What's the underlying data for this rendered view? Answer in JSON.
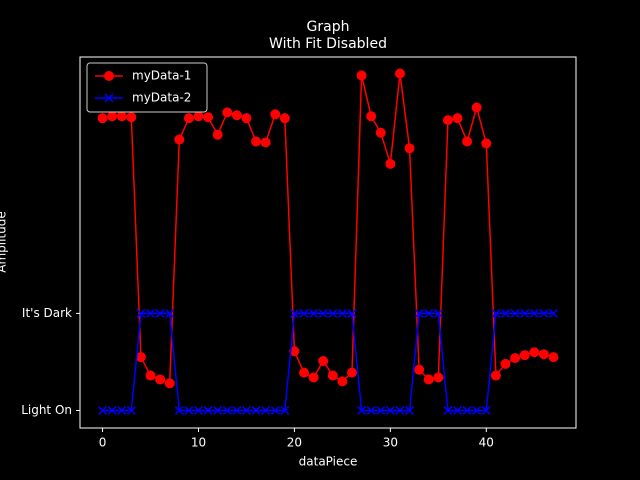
{
  "chart_data": {
    "type": "line",
    "title": "Graph",
    "subtitle": "With Fit Disabled",
    "x_label": "dataPiece",
    "y_label": "Amplitude",
    "x": [
      0,
      1,
      2,
      3,
      4,
      5,
      6,
      7,
      8,
      9,
      10,
      11,
      12,
      13,
      14,
      15,
      16,
      17,
      18,
      19,
      20,
      21,
      22,
      23,
      24,
      25,
      26,
      27,
      28,
      29,
      30,
      31,
      32,
      33,
      34,
      35,
      36,
      37,
      38,
      39,
      40,
      41,
      42,
      43,
      44,
      45,
      46,
      47
    ],
    "series": [
      {
        "name": "myData-1",
        "color": "#ff0000",
        "marker": "circle",
        "values": [
          3.01,
          3.03,
          3.03,
          3.02,
          0.55,
          0.36,
          0.32,
          0.28,
          2.79,
          3.01,
          3.03,
          3.02,
          2.84,
          3.07,
          3.04,
          3.01,
          2.77,
          2.76,
          3.05,
          3.01,
          0.61,
          0.39,
          0.34,
          0.51,
          0.36,
          0.3,
          0.39,
          3.45,
          3.03,
          2.86,
          2.54,
          3.47,
          2.7,
          0.42,
          0.32,
          0.34,
          2.99,
          3.01,
          2.77,
          3.12,
          2.75,
          0.36,
          0.48,
          0.54,
          0.57,
          0.6,
          0.58,
          0.55
        ]
      },
      {
        "name": "myData-2",
        "color": "#0000ff",
        "marker": "x",
        "values": [
          0,
          0,
          0,
          0,
          1,
          1,
          1,
          1,
          0,
          0,
          0,
          0,
          0,
          0,
          0,
          0,
          0,
          0,
          0,
          0,
          1,
          1,
          1,
          1,
          1,
          1,
          1,
          0,
          0,
          0,
          0,
          0,
          0,
          1,
          1,
          1,
          0,
          0,
          0,
          0,
          0,
          1,
          1,
          1,
          1,
          1,
          1,
          1
        ]
      }
    ],
    "xlim": [
      -2.35,
      49.35
    ],
    "ylim": [
      -0.18,
      3.64
    ],
    "xticks": [
      0,
      10,
      20,
      30,
      40
    ],
    "yticks": [
      {
        "value": 0,
        "label": "Light On"
      },
      {
        "value": 1,
        "label": "It's Dark"
      }
    ],
    "legend": "upper-left",
    "grid": false
  }
}
